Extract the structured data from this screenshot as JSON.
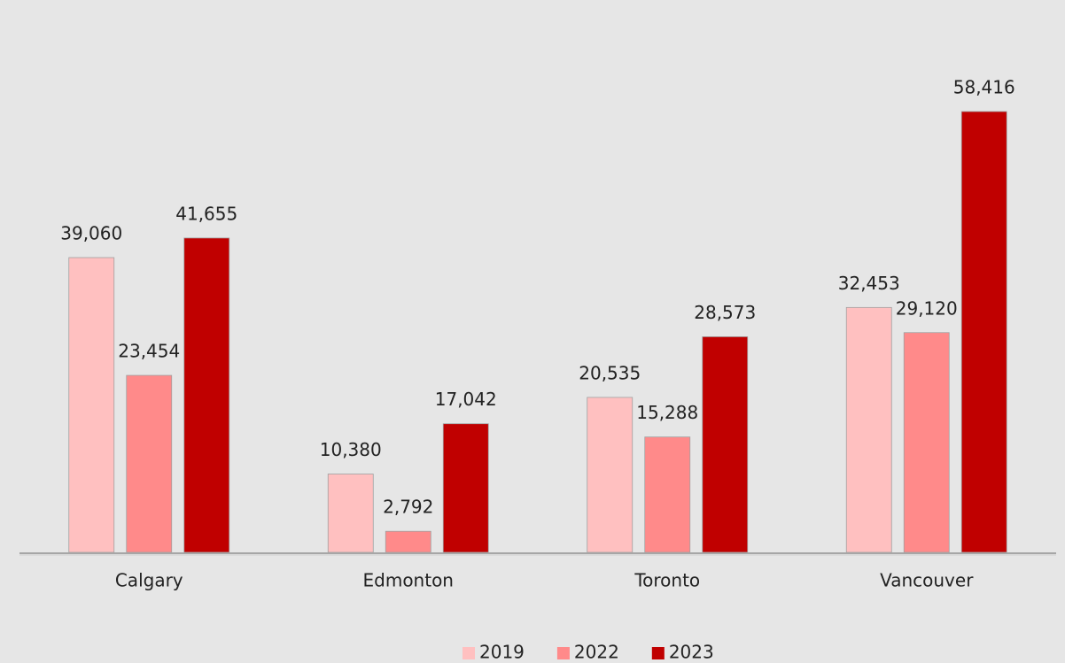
{
  "chart_data": {
    "type": "bar",
    "categories": [
      "Calgary",
      "Edmonton",
      "Toronto",
      "Vancouver"
    ],
    "series": [
      {
        "name": "2019",
        "color": "#ffc0c0",
        "values": [
          39060,
          10380,
          20535,
          32453
        ],
        "value_labels": [
          "39,060",
          "10,380",
          "20,535",
          "32,453"
        ]
      },
      {
        "name": "2022",
        "color": "#ff8a8a",
        "values": [
          23454,
          2792,
          15288,
          29120
        ],
        "value_labels": [
          "23,454",
          "2,792",
          "15,288",
          "29,120"
        ]
      },
      {
        "name": "2023",
        "color": "#c00000",
        "values": [
          41655,
          17042,
          28573,
          58416
        ],
        "value_labels": [
          "41,655",
          "17,042",
          "28,573",
          "58,416"
        ]
      }
    ],
    "legend": "bottom"
  }
}
